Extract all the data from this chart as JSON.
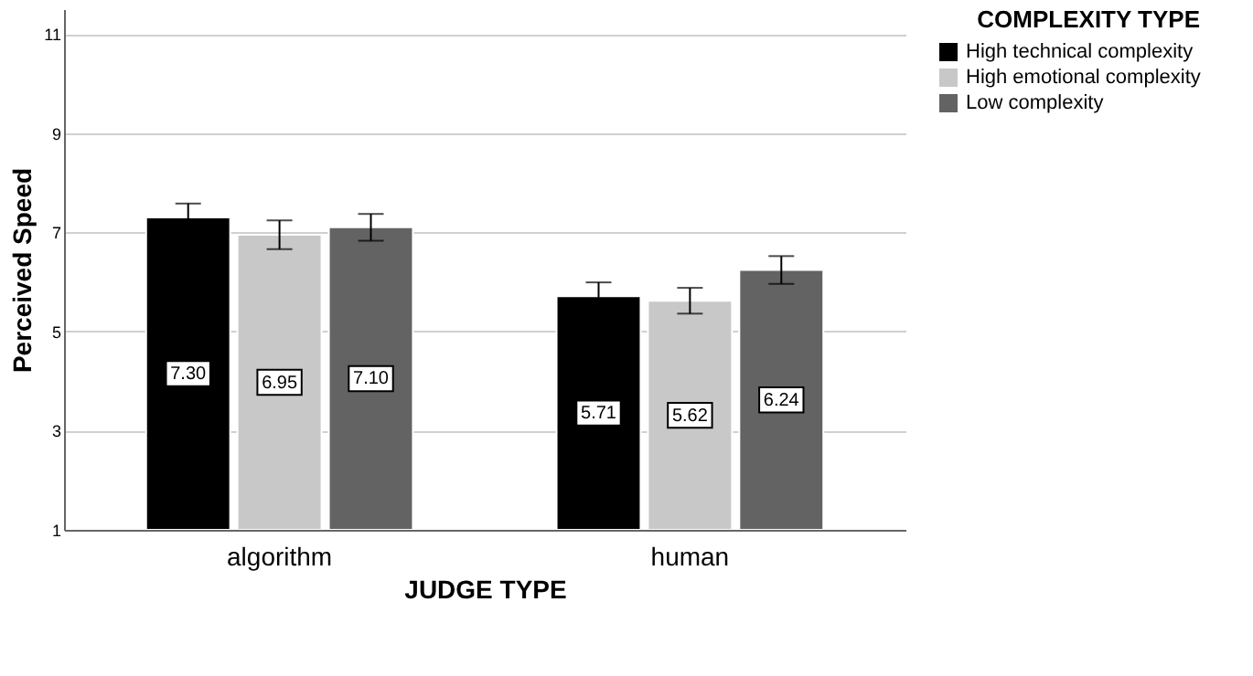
{
  "chart_data": {
    "type": "bar",
    "xlabel": "JUDGE TYPE",
    "ylabel": "Perceived Speed",
    "legend_title": "COMPLEXITY TYPE",
    "categories": [
      "algorithm",
      "human"
    ],
    "series": [
      {
        "name": "High technical complexity",
        "color": "#000000",
        "values": [
          7.3,
          5.71
        ],
        "value_labels": [
          "7.30",
          "5.71"
        ],
        "errors": [
          0.28,
          0.28
        ]
      },
      {
        "name": "High emotional complexity",
        "color": "#c8c8c8",
        "values": [
          6.95,
          5.62
        ],
        "value_labels": [
          "6.95",
          "5.62"
        ],
        "errors": [
          0.29,
          0.26
        ]
      },
      {
        "name": "Low complexity",
        "color": "#636363",
        "values": [
          7.1,
          6.24
        ],
        "value_labels": [
          "7.10",
          "6.24"
        ],
        "errors": [
          0.27,
          0.28
        ]
      }
    ],
    "ylim": [
      1,
      11.5
    ],
    "yticks": [
      1,
      3,
      5,
      7,
      9,
      11
    ],
    "grid": "y",
    "legend": "top right"
  }
}
